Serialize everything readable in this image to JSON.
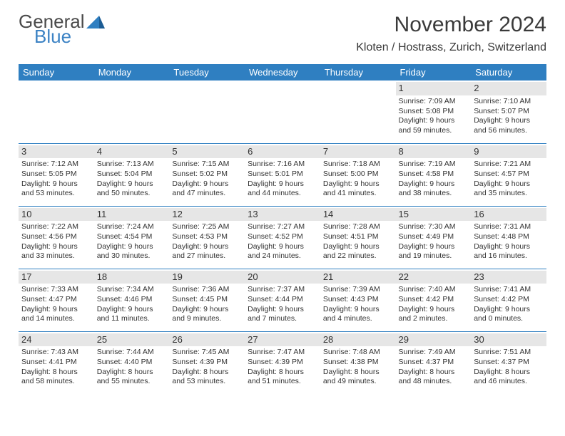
{
  "logo": {
    "text1": "General",
    "text2": "Blue"
  },
  "title": "November 2024",
  "location": "Kloten / Hostrass, Zurich, Switzerland",
  "colors": {
    "header_bg": "#2f7fc1",
    "header_text": "#ffffff",
    "daynum_bg": "#e6e6e6",
    "border": "#2f7fc1",
    "text": "#333333",
    "logo_gray": "#4a4a4a",
    "logo_blue": "#3b82c4",
    "page_bg": "#ffffff"
  },
  "typography": {
    "title_fontsize": 30,
    "location_fontsize": 16,
    "header_fontsize": 13,
    "cell_fontsize": 10.5,
    "daynum_fontsize": 13
  },
  "day_names": [
    "Sunday",
    "Monday",
    "Tuesday",
    "Wednesday",
    "Thursday",
    "Friday",
    "Saturday"
  ],
  "weeks": [
    [
      null,
      null,
      null,
      null,
      null,
      {
        "n": "1",
        "sr": "Sunrise: 7:09 AM",
        "ss": "Sunset: 5:08 PM",
        "dl": "Daylight: 9 hours and 59 minutes."
      },
      {
        "n": "2",
        "sr": "Sunrise: 7:10 AM",
        "ss": "Sunset: 5:07 PM",
        "dl": "Daylight: 9 hours and 56 minutes."
      }
    ],
    [
      {
        "n": "3",
        "sr": "Sunrise: 7:12 AM",
        "ss": "Sunset: 5:05 PM",
        "dl": "Daylight: 9 hours and 53 minutes."
      },
      {
        "n": "4",
        "sr": "Sunrise: 7:13 AM",
        "ss": "Sunset: 5:04 PM",
        "dl": "Daylight: 9 hours and 50 minutes."
      },
      {
        "n": "5",
        "sr": "Sunrise: 7:15 AM",
        "ss": "Sunset: 5:02 PM",
        "dl": "Daylight: 9 hours and 47 minutes."
      },
      {
        "n": "6",
        "sr": "Sunrise: 7:16 AM",
        "ss": "Sunset: 5:01 PM",
        "dl": "Daylight: 9 hours and 44 minutes."
      },
      {
        "n": "7",
        "sr": "Sunrise: 7:18 AM",
        "ss": "Sunset: 5:00 PM",
        "dl": "Daylight: 9 hours and 41 minutes."
      },
      {
        "n": "8",
        "sr": "Sunrise: 7:19 AM",
        "ss": "Sunset: 4:58 PM",
        "dl": "Daylight: 9 hours and 38 minutes."
      },
      {
        "n": "9",
        "sr": "Sunrise: 7:21 AM",
        "ss": "Sunset: 4:57 PM",
        "dl": "Daylight: 9 hours and 35 minutes."
      }
    ],
    [
      {
        "n": "10",
        "sr": "Sunrise: 7:22 AM",
        "ss": "Sunset: 4:56 PM",
        "dl": "Daylight: 9 hours and 33 minutes."
      },
      {
        "n": "11",
        "sr": "Sunrise: 7:24 AM",
        "ss": "Sunset: 4:54 PM",
        "dl": "Daylight: 9 hours and 30 minutes."
      },
      {
        "n": "12",
        "sr": "Sunrise: 7:25 AM",
        "ss": "Sunset: 4:53 PM",
        "dl": "Daylight: 9 hours and 27 minutes."
      },
      {
        "n": "13",
        "sr": "Sunrise: 7:27 AM",
        "ss": "Sunset: 4:52 PM",
        "dl": "Daylight: 9 hours and 24 minutes."
      },
      {
        "n": "14",
        "sr": "Sunrise: 7:28 AM",
        "ss": "Sunset: 4:51 PM",
        "dl": "Daylight: 9 hours and 22 minutes."
      },
      {
        "n": "15",
        "sr": "Sunrise: 7:30 AM",
        "ss": "Sunset: 4:49 PM",
        "dl": "Daylight: 9 hours and 19 minutes."
      },
      {
        "n": "16",
        "sr": "Sunrise: 7:31 AM",
        "ss": "Sunset: 4:48 PM",
        "dl": "Daylight: 9 hours and 16 minutes."
      }
    ],
    [
      {
        "n": "17",
        "sr": "Sunrise: 7:33 AM",
        "ss": "Sunset: 4:47 PM",
        "dl": "Daylight: 9 hours and 14 minutes."
      },
      {
        "n": "18",
        "sr": "Sunrise: 7:34 AM",
        "ss": "Sunset: 4:46 PM",
        "dl": "Daylight: 9 hours and 11 minutes."
      },
      {
        "n": "19",
        "sr": "Sunrise: 7:36 AM",
        "ss": "Sunset: 4:45 PM",
        "dl": "Daylight: 9 hours and 9 minutes."
      },
      {
        "n": "20",
        "sr": "Sunrise: 7:37 AM",
        "ss": "Sunset: 4:44 PM",
        "dl": "Daylight: 9 hours and 7 minutes."
      },
      {
        "n": "21",
        "sr": "Sunrise: 7:39 AM",
        "ss": "Sunset: 4:43 PM",
        "dl": "Daylight: 9 hours and 4 minutes."
      },
      {
        "n": "22",
        "sr": "Sunrise: 7:40 AM",
        "ss": "Sunset: 4:42 PM",
        "dl": "Daylight: 9 hours and 2 minutes."
      },
      {
        "n": "23",
        "sr": "Sunrise: 7:41 AM",
        "ss": "Sunset: 4:42 PM",
        "dl": "Daylight: 9 hours and 0 minutes."
      }
    ],
    [
      {
        "n": "24",
        "sr": "Sunrise: 7:43 AM",
        "ss": "Sunset: 4:41 PM",
        "dl": "Daylight: 8 hours and 58 minutes."
      },
      {
        "n": "25",
        "sr": "Sunrise: 7:44 AM",
        "ss": "Sunset: 4:40 PM",
        "dl": "Daylight: 8 hours and 55 minutes."
      },
      {
        "n": "26",
        "sr": "Sunrise: 7:45 AM",
        "ss": "Sunset: 4:39 PM",
        "dl": "Daylight: 8 hours and 53 minutes."
      },
      {
        "n": "27",
        "sr": "Sunrise: 7:47 AM",
        "ss": "Sunset: 4:39 PM",
        "dl": "Daylight: 8 hours and 51 minutes."
      },
      {
        "n": "28",
        "sr": "Sunrise: 7:48 AM",
        "ss": "Sunset: 4:38 PM",
        "dl": "Daylight: 8 hours and 49 minutes."
      },
      {
        "n": "29",
        "sr": "Sunrise: 7:49 AM",
        "ss": "Sunset: 4:37 PM",
        "dl": "Daylight: 8 hours and 48 minutes."
      },
      {
        "n": "30",
        "sr": "Sunrise: 7:51 AM",
        "ss": "Sunset: 4:37 PM",
        "dl": "Daylight: 8 hours and 46 minutes."
      }
    ]
  ]
}
